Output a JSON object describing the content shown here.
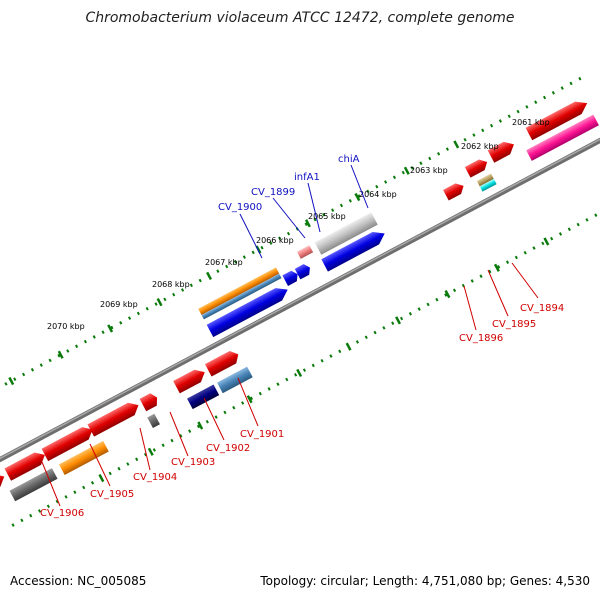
{
  "title": "Chromobacterium violaceum ATCC 12472, complete genome",
  "footer": {
    "accession": "Accession: NC_005085",
    "summary": "Topology: circular; Length: 4,751,080 bp; Genes: 4,530"
  },
  "colors": {
    "backbone": "#8a8a8a",
    "tick": "#0a7a0a",
    "upper_label": "#1010c0",
    "lower_label": "#d00000"
  },
  "ruler_labels": [
    "2061 kbp",
    "2062 kbp",
    "2063 kbp",
    "2064 kbp",
    "2065 kbp",
    "2066 kbp",
    "2067 kbp",
    "2068 kbp",
    "2069 kbp",
    "2070 kbp"
  ],
  "gene_labels": [
    {
      "text": "chiA",
      "color": "blue"
    },
    {
      "text": "infA1",
      "color": "blue"
    },
    {
      "text": "CV_1899",
      "color": "blue"
    },
    {
      "text": "CV_1900",
      "color": "blue"
    },
    {
      "text": "CV_1894",
      "color": "red"
    },
    {
      "text": "CV_1895",
      "color": "red"
    },
    {
      "text": "CV_1896",
      "color": "red"
    },
    {
      "text": "CV_1901",
      "color": "red"
    },
    {
      "text": "CV_1902",
      "color": "red"
    },
    {
      "text": "CV_1903",
      "color": "red"
    },
    {
      "text": "CV_1904",
      "color": "red"
    },
    {
      "text": "CV_1905",
      "color": "red"
    },
    {
      "text": "CV_1906",
      "color": "red"
    }
  ]
}
